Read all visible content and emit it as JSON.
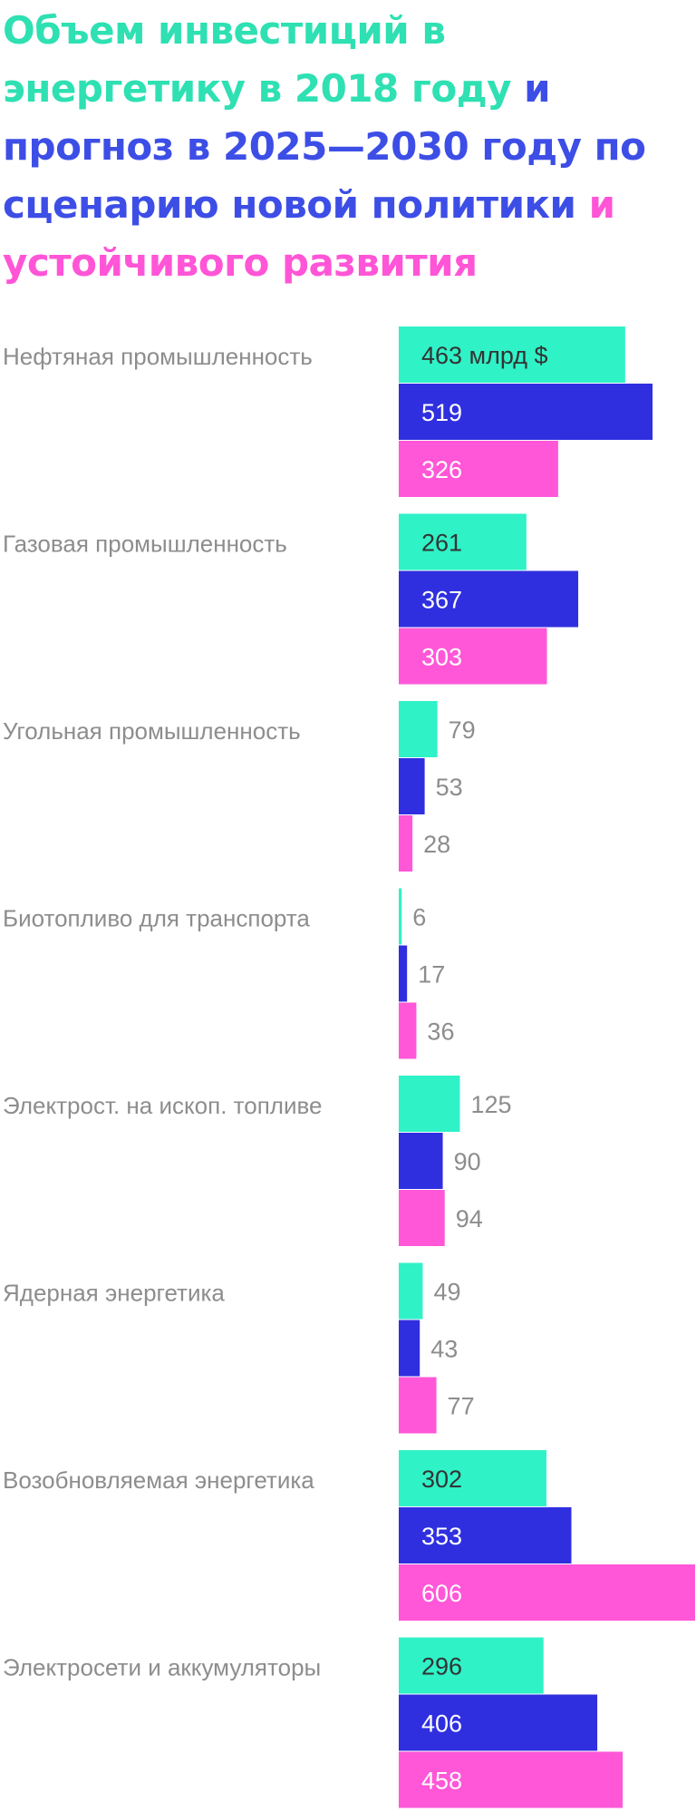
{
  "title": {
    "part1": "Объем инвестиций в энергетику в",
    "part2": "2018 году",
    "part3": "и прогноз в 2025—2030 году по сценарию новой политики",
    "part4": "и устойчивого развития"
  },
  "colors": {
    "y2018": "#2ff2c7",
    "new_policy": "#2f2fe0",
    "sustainable": "#ff57d8",
    "label_text": "#8d8d8d",
    "inner_text_dark": "#333333",
    "inner_text_light": "#ffffff"
  },
  "chart_data": {
    "type": "bar",
    "orientation": "horizontal",
    "unit": "млрд $",
    "categories": [
      "Нефтяная промышленность",
      "Газовая промышленность",
      "Угольная промышленность",
      "Биотопливо для транспорта",
      "Электрост. на ископ. топливе",
      "Ядерная энергетика",
      "Возобновляемая энергетика",
      "Электросети и аккумуляторы"
    ],
    "series": [
      {
        "name": "2018 году",
        "values": [
          463,
          261,
          79,
          6,
          125,
          49,
          302,
          296
        ]
      },
      {
        "name": "новой политики",
        "values": [
          519,
          367,
          53,
          17,
          90,
          43,
          353,
          406
        ]
      },
      {
        "name": "устойчивого развития",
        "values": [
          326,
          303,
          28,
          36,
          94,
          77,
          606,
          458
        ]
      }
    ],
    "first_value_label": "463 млрд $",
    "xlim": [
      0,
      606
    ]
  }
}
